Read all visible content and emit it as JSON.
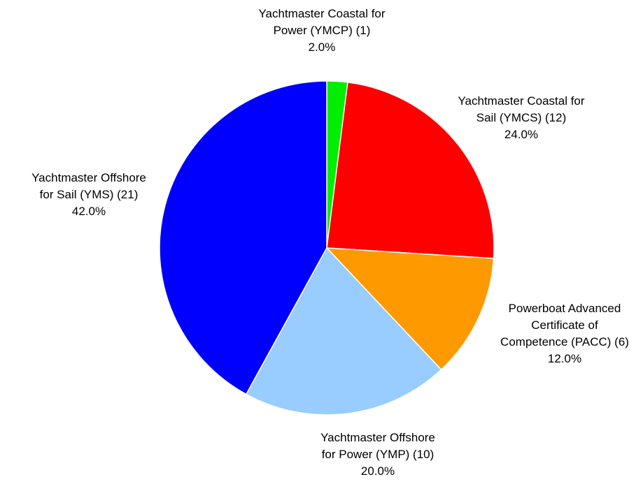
{
  "chart_data": {
    "type": "pie",
    "title": "",
    "start_angle_deg": 0,
    "direction": "clockwise",
    "slices": [
      {
        "name": "Yachtmaster Coastal for Power (YMCP)",
        "label_lines": [
          "Yachtmaster Coastal for",
          "Power (YMCP) (1)"
        ],
        "count": 1,
        "percent_label": "2.0%",
        "value": 2.0,
        "color": "#00ee00"
      },
      {
        "name": "Yachtmaster Coastal for Sail (YMCS)",
        "label_lines": [
          "Yachtmaster Coastal for",
          "Sail (YMCS) (12)"
        ],
        "count": 12,
        "percent_label": "24.0%",
        "value": 24.0,
        "color": "#ff0000"
      },
      {
        "name": "Powerboat Advanced Certificate of Competence (PACC)",
        "label_lines": [
          "Powerboat Advanced",
          "Certificate of",
          "Competence (PACC) (6)"
        ],
        "count": 6,
        "percent_label": "12.0%",
        "value": 12.0,
        "color": "#ff9900"
      },
      {
        "name": "Yachtmaster Offshore for Power (YMP)",
        "label_lines": [
          "Yachtmaster Offshore",
          "for Power (YMP) (10)"
        ],
        "count": 10,
        "percent_label": "20.0%",
        "value": 20.0,
        "color": "#99ccff"
      },
      {
        "name": "Yachtmaster Offshore for Sail (YMS)",
        "label_lines": [
          "Yachtmaster Offshore",
          "for Sail (YMS) (21)"
        ],
        "count": 21,
        "percent_label": "42.0%",
        "value": 42.0,
        "color": "#0000ff"
      }
    ]
  }
}
